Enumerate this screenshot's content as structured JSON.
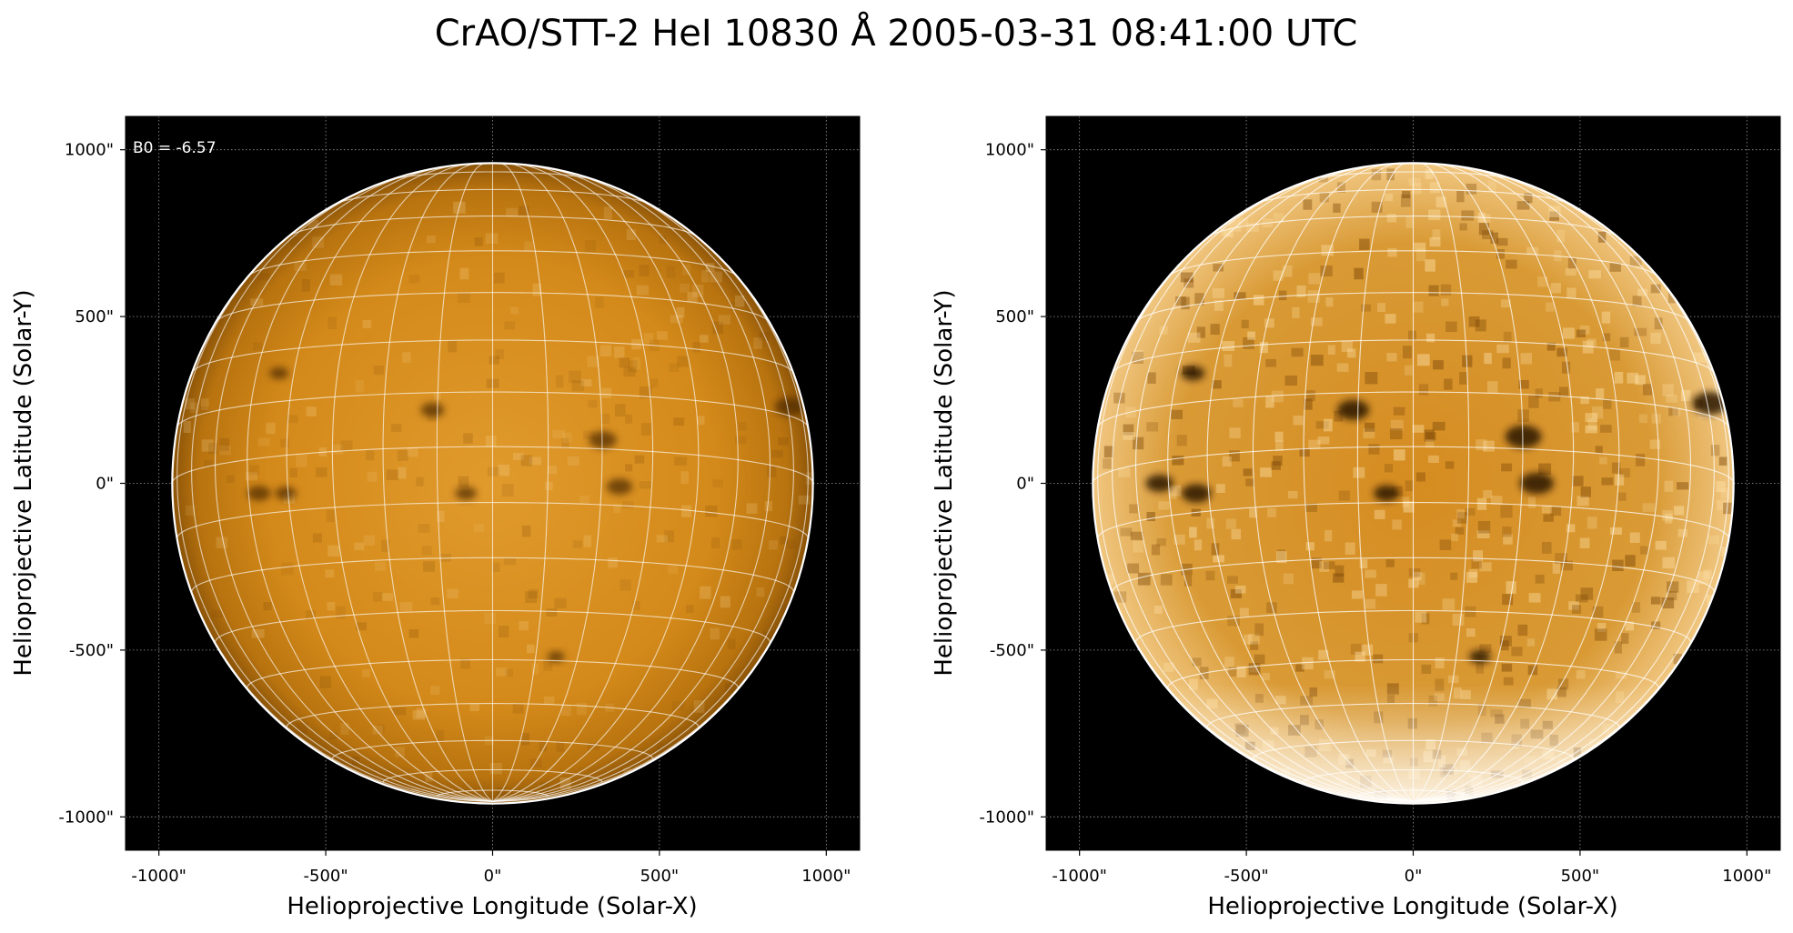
{
  "figure": {
    "title": "CrAO/STT-2 HeI 10830 Å 2005-03-31 08:41:00 UTC"
  },
  "colors": {
    "background": "#000000",
    "disk_light": "#e8a63a",
    "disk_mid": "#d48a1a",
    "disk_dark": "#9a5a08",
    "limb": "#ffffff",
    "grid": "#ffffff"
  },
  "chart_data": [
    {
      "type": "heatmap",
      "panel": "left",
      "description_type": "solar disk image",
      "xlabel": "Helioprojective Longitude (Solar-X)",
      "ylabel": "Helioprojective Latitude (Solar-Y)",
      "xlim": [
        -1100,
        1100
      ],
      "ylim": [
        -1100,
        1100
      ],
      "xticks": [
        -1000,
        -500,
        0,
        500,
        1000
      ],
      "yticks": [
        -1000,
        -500,
        0,
        500,
        1000
      ],
      "xtick_labels": [
        "-1000\"",
        "-500\"",
        "0\"",
        "500\"",
        "1000\""
      ],
      "ytick_labels": [
        "-1000\"",
        "-500\"",
        "0\"",
        "500\"",
        "1000\""
      ],
      "grid": true,
      "solar_radius_arcsec": 960,
      "annotation": "B0 = -6.57",
      "features": [
        {
          "x": -640,
          "y": 330,
          "r": 18
        },
        {
          "x": -180,
          "y": 220,
          "r": 22
        },
        {
          "x": -700,
          "y": -30,
          "r": 22
        },
        {
          "x": -620,
          "y": -30,
          "r": 20
        },
        {
          "x": -80,
          "y": -30,
          "r": 20
        },
        {
          "x": 330,
          "y": 130,
          "r": 26
        },
        {
          "x": 380,
          "y": -10,
          "r": 24
        },
        {
          "x": 890,
          "y": 230,
          "r": 28
        },
        {
          "x": 190,
          "y": -520,
          "r": 16
        }
      ]
    },
    {
      "type": "heatmap",
      "panel": "right",
      "description_type": "solar disk image, contrast enhanced",
      "xlabel": "Helioprojective Longitude (Solar-X)",
      "ylabel": "Helioprojective Latitude (Solar-Y)",
      "xlim": [
        -1100,
        1100
      ],
      "ylim": [
        -1100,
        1100
      ],
      "xticks": [
        -1000,
        -500,
        0,
        500,
        1000
      ],
      "yticks": [
        -1000,
        -500,
        0,
        500,
        1000
      ],
      "xtick_labels": [
        "-1000\"",
        "-500\"",
        "0\"",
        "500\"",
        "1000\""
      ],
      "ytick_labels": [
        "-1000\"",
        "-500\"",
        "0\"",
        "500\"",
        "1000\""
      ],
      "grid": true,
      "solar_radius_arcsec": 960,
      "features": [
        {
          "x": -660,
          "y": 330,
          "r": 22
        },
        {
          "x": -180,
          "y": 220,
          "r": 30
        },
        {
          "x": -760,
          "y": 0,
          "r": 26
        },
        {
          "x": -650,
          "y": -30,
          "r": 28
        },
        {
          "x": -80,
          "y": -30,
          "r": 24
        },
        {
          "x": 330,
          "y": 140,
          "r": 34
        },
        {
          "x": 370,
          "y": 0,
          "r": 32
        },
        {
          "x": 890,
          "y": 240,
          "r": 34
        },
        {
          "x": 200,
          "y": -520,
          "r": 20
        }
      ]
    }
  ]
}
